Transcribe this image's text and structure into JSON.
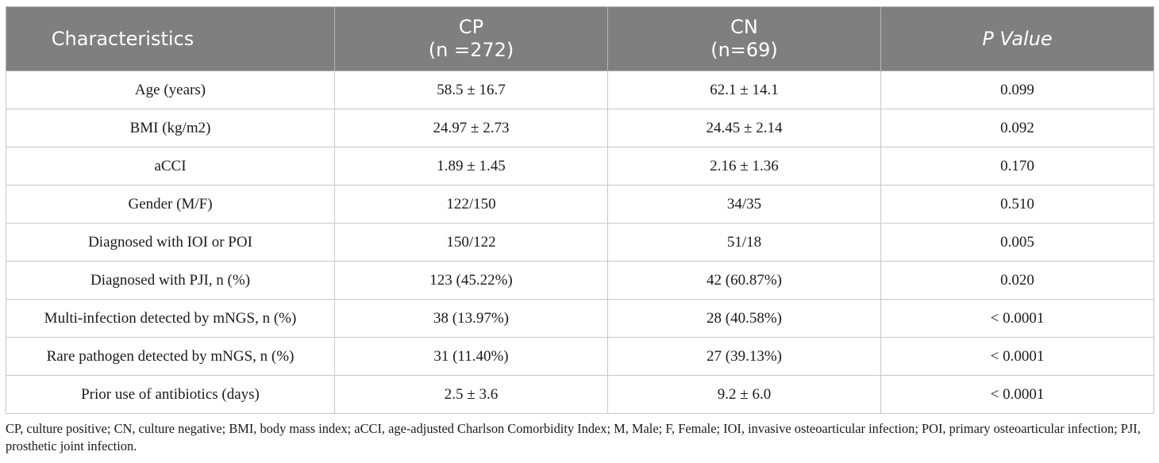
{
  "table": {
    "headers": [
      {
        "line1": "Characteristics",
        "line2": ""
      },
      {
        "line1": "CP",
        "line2": "(n =272)"
      },
      {
        "line1": "CN",
        "line2": "(n=69)"
      },
      {
        "line1": "P Value",
        "line2": ""
      }
    ],
    "rows": [
      [
        "Age (years)",
        "58.5 ± 16.7",
        "62.1 ± 14.1",
        "0.099"
      ],
      [
        "BMI (kg/m2)",
        "24.97 ± 2.73",
        "24.45 ± 2.14",
        "0.092"
      ],
      [
        "aCCI",
        "1.89 ± 1.45",
        "2.16 ± 1.36",
        "0.170"
      ],
      [
        "Gender (M/F)",
        "122/150",
        "34/35",
        "0.510"
      ],
      [
        "Diagnosed with IOI or POI",
        "150/122",
        "51/18",
        "0.005"
      ],
      [
        "Diagnosed with PJI, n (%)",
        "123 (45.22%)",
        "42 (60.87%)",
        "0.020"
      ],
      [
        "Multi-infection detected by mNGS, n (%)",
        "38 (13.97%)",
        "28 (40.58%)",
        "< 0.0001"
      ],
      [
        "Rare pathogen detected by mNGS, n (%)",
        "31 (11.40%)",
        "27 (39.13%)",
        "< 0.0001"
      ],
      [
        "Prior use of antibiotics (days)",
        "2.5 ± 3.6",
        "9.2 ± 6.0",
        "< 0.0001"
      ]
    ]
  },
  "footnote": "CP, culture positive; CN, culture negative; BMI, body mass index; aCCI, age-adjusted Charlson Comorbidity Index; M, Male; F, Female; IOI, invasive osteoarticular infection; POI, primary osteoarticular infection; PJI, prosthetic joint infection."
}
